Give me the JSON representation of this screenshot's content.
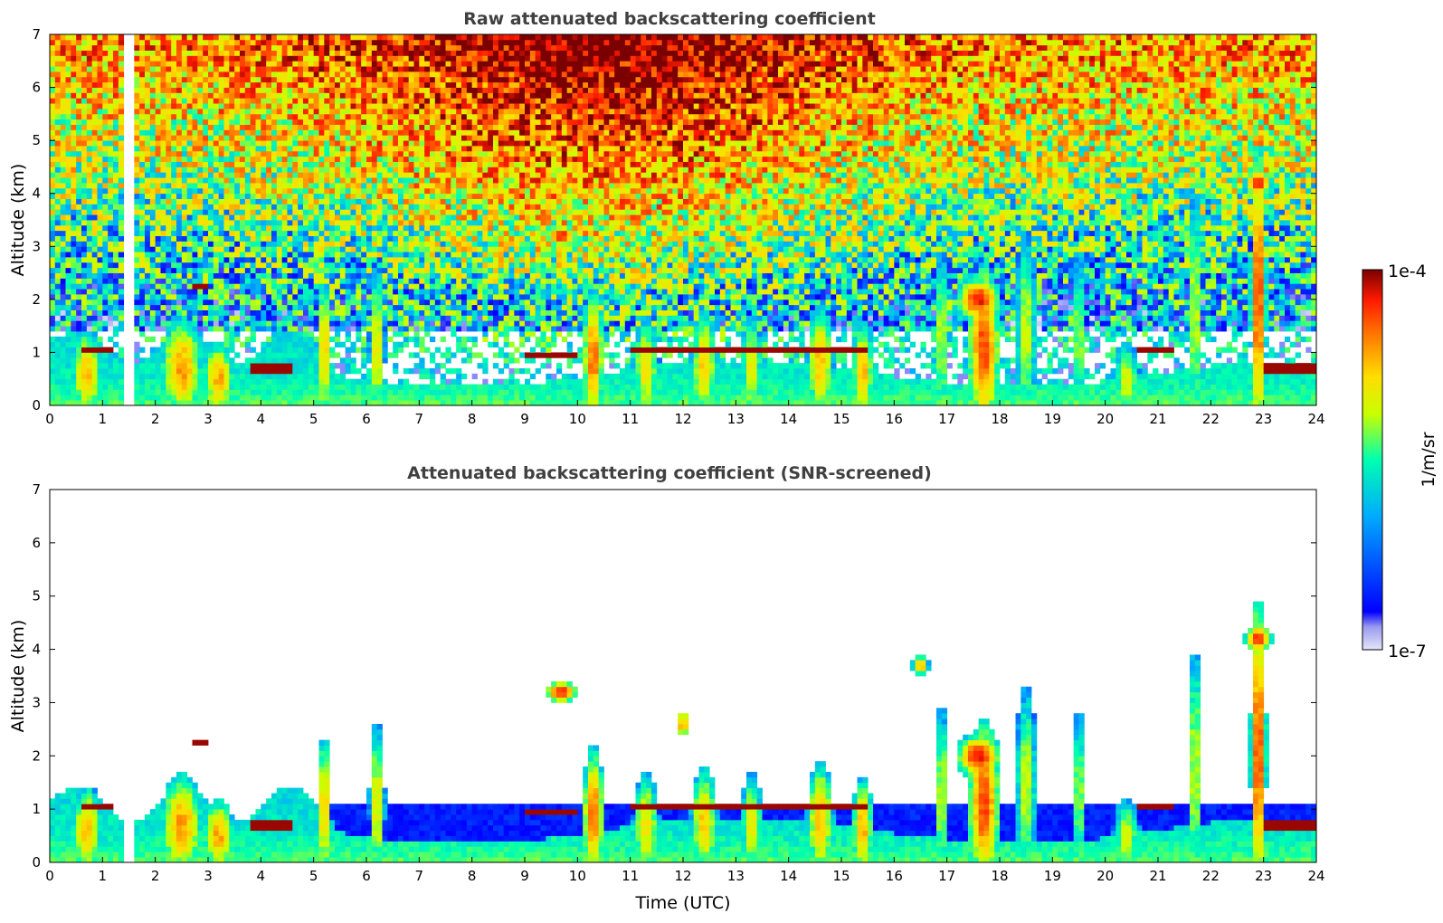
{
  "chart_data": [
    {
      "type": "heatmap",
      "title": "Raw attenuated backscattering coefficient",
      "xlabel": "",
      "ylabel": "Altitude (km)",
      "xlim": [
        0,
        24
      ],
      "ylim": [
        0,
        7
      ],
      "xticks": [
        "0",
        "1",
        "2",
        "3",
        "4",
        "5",
        "6",
        "7",
        "8",
        "9",
        "10",
        "11",
        "12",
        "13",
        "14",
        "15",
        "16",
        "17",
        "18",
        "19",
        "20",
        "21",
        "22",
        "23",
        "24"
      ],
      "yticks": [
        "0",
        "1",
        "2",
        "3",
        "4",
        "5",
        "6",
        "7"
      ],
      "grid": false,
      "data_gaps_utc": [
        [
          1.45,
          1.6
        ]
      ],
      "features": {
        "boundary_layer_top_km": 0.6,
        "cloud_base_segments": [
          {
            "x": [
              0.6,
              1.2
            ],
            "y": 1.05
          },
          {
            "x": [
              3.8,
              4.6
            ],
            "y": 0.7
          },
          {
            "x": [
              9.0,
              10.0
            ],
            "y": 0.95
          },
          {
            "x": [
              11.0,
              15.5
            ],
            "y": 1.05
          },
          {
            "x": [
              20.6,
              21.3
            ],
            "y": 1.05
          },
          {
            "x": [
              23.0,
              24.0
            ],
            "y": 0.7
          }
        ],
        "elevated_layers": [
          {
            "x": [
              9.5,
              10.2
            ],
            "y": [
              2.6,
              3.4
            ]
          },
          {
            "x": [
              11.9,
              12.2
            ],
            "y": [
              2.3,
              2.9
            ]
          },
          {
            "x": [
              17.2,
              18.3
            ],
            "y": [
              0.9,
              2.5
            ]
          },
          {
            "x": [
              22.5,
              23.1
            ],
            "y": [
              3.5,
              4.6
            ]
          }
        ]
      }
    },
    {
      "type": "heatmap",
      "title": "Attenuated backscattering coefficient (SNR-screened)",
      "xlabel": "Time (UTC)",
      "ylabel": "Altitude (km)",
      "xlim": [
        0,
        24
      ],
      "ylim": [
        0,
        7
      ],
      "xticks": [
        "0",
        "1",
        "2",
        "3",
        "4",
        "5",
        "6",
        "7",
        "8",
        "9",
        "10",
        "11",
        "12",
        "13",
        "14",
        "15",
        "16",
        "17",
        "18",
        "19",
        "20",
        "21",
        "22",
        "23",
        "24"
      ],
      "yticks": [
        "0",
        "1",
        "2",
        "3",
        "4",
        "5",
        "6",
        "7"
      ],
      "grid": false,
      "data_gaps_utc": [
        [
          1.45,
          1.6
        ]
      ],
      "features": {
        "boundary_layer_top_km": 1.1,
        "cloud_base_segments": [
          {
            "x": [
              0.6,
              1.2
            ],
            "y": 1.0
          },
          {
            "x": [
              3.8,
              4.6
            ],
            "y": 0.7
          },
          {
            "x": [
              9.0,
              10.0
            ],
            "y": 0.9
          },
          {
            "x": [
              11.0,
              15.5
            ],
            "y": 1.0
          },
          {
            "x": [
              20.6,
              21.3
            ],
            "y": 1.0
          },
          {
            "x": [
              23.0,
              24.0
            ],
            "y": 0.7
          }
        ]
      }
    }
  ],
  "colorbar": {
    "label": "1/m/sr",
    "max_label": "1e-4",
    "min_label": "1e-7",
    "scale": "log",
    "range": [
      1e-07,
      0.0001
    ],
    "colormap": [
      "#e6e6f8",
      "#0000ff",
      "#00aaff",
      "#00ffb0",
      "#c8ff00",
      "#ffdd00",
      "#ff7700",
      "#ff1a00",
      "#7a0000"
    ]
  }
}
